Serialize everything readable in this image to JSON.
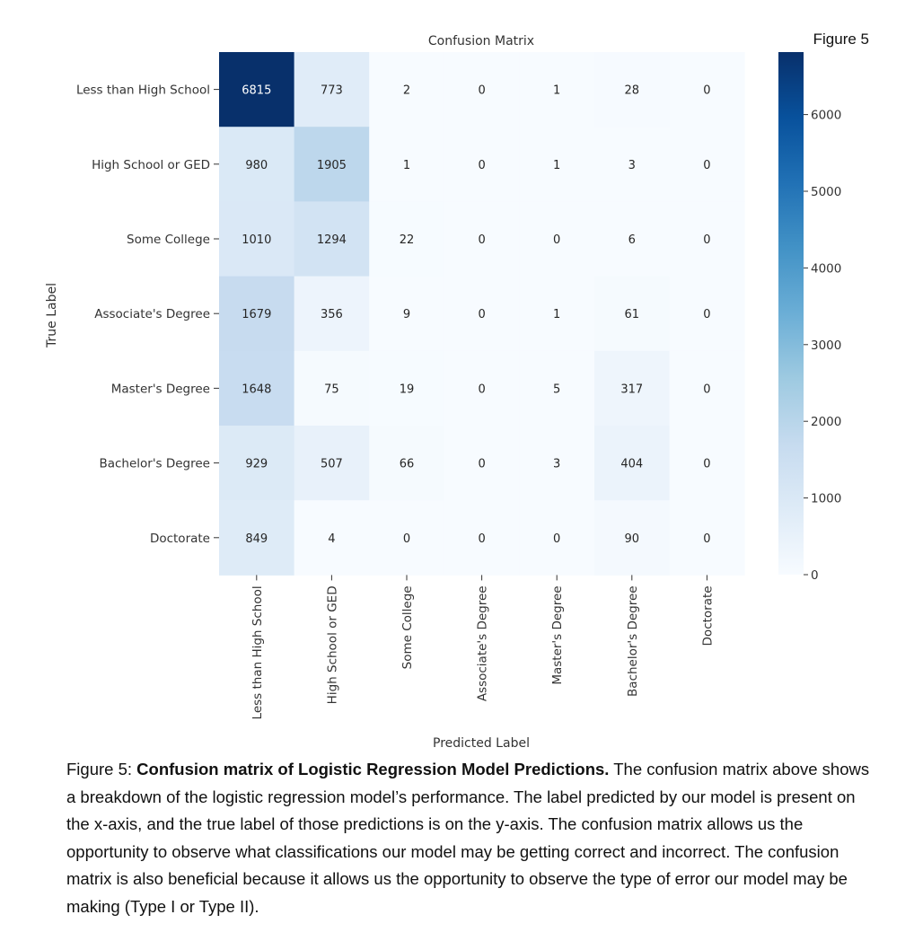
{
  "figure_label": "Figure 5",
  "caption": {
    "prefix": "Figure 5: ",
    "bold": "Confusion matrix of Logistic Regression Model Predictions.",
    "text": " The confusion matrix above shows a breakdown of the logistic regression model’s performance. The label predicted by our model is present on the x-axis, and the true label of those predictions is on the y-axis. The confusion matrix allows us the opportunity to observe what classifications our model may be getting correct and incorrect. The confusion matrix is also beneficial because it allows us the opportunity to observe the type of error our model may be making (Type I or Type II)."
  },
  "chart_data": {
    "type": "heatmap",
    "title": "Confusion Matrix",
    "xlabel": "Predicted Label",
    "ylabel": "True Label",
    "x_categories": [
      "Less than High School",
      "High School or GED",
      "Some College",
      "Associate's Degree",
      "Master's Degree",
      "Bachelor's Degree",
      "Doctorate"
    ],
    "y_categories": [
      "Less than High School",
      "High School or GED",
      "Some College",
      "Associate's Degree",
      "Master's Degree",
      "Bachelor's Degree",
      "Doctorate"
    ],
    "values": [
      [
        6815,
        773,
        2,
        0,
        1,
        28,
        0
      ],
      [
        980,
        1905,
        1,
        0,
        1,
        3,
        0
      ],
      [
        1010,
        1294,
        22,
        0,
        0,
        6,
        0
      ],
      [
        1679,
        356,
        9,
        0,
        1,
        61,
        0
      ],
      [
        1648,
        75,
        19,
        0,
        5,
        317,
        0
      ],
      [
        929,
        507,
        66,
        0,
        3,
        404,
        0
      ],
      [
        849,
        4,
        0,
        0,
        0,
        90,
        0
      ]
    ],
    "colormap": "Blues",
    "colorbar": {
      "range": [
        0,
        6815
      ],
      "ticks": [
        0,
        1000,
        2000,
        3000,
        4000,
        5000,
        6000
      ]
    }
  }
}
